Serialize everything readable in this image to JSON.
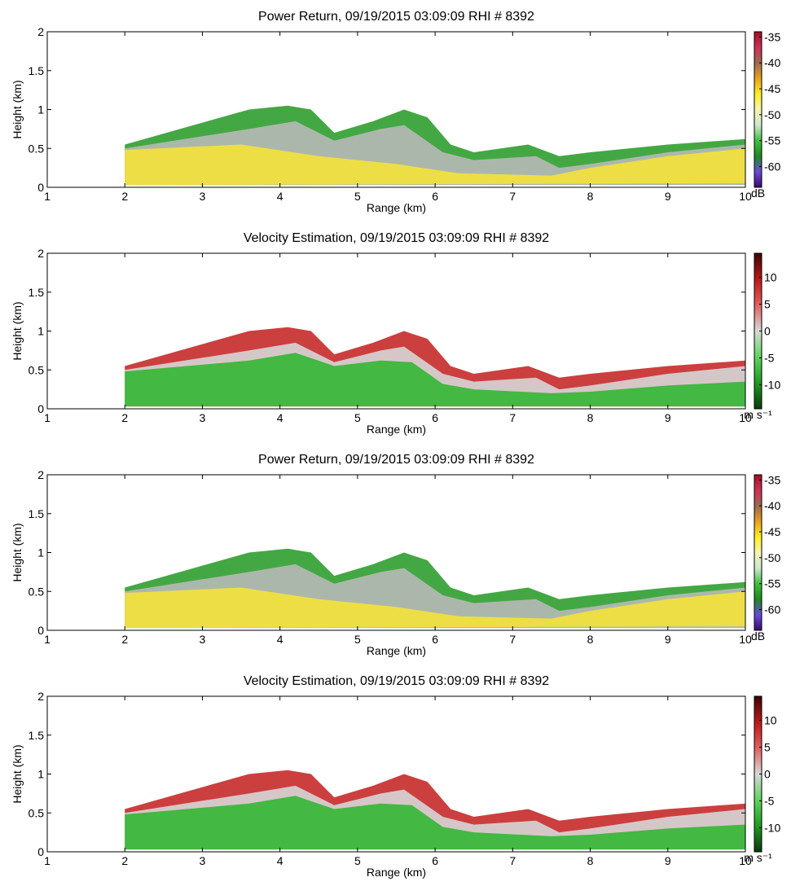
{
  "chart_data": [
    {
      "type": "heatmap",
      "title": "Power Return, 09/19/2015 03:09:09 RHI # 8392",
      "xlabel": "Range (km)",
      "ylabel": "Height (km)",
      "xlim": [
        1,
        10
      ],
      "xticks": [
        1,
        2,
        3,
        4,
        5,
        6,
        7,
        8,
        9,
        10
      ],
      "ylim": [
        0,
        2
      ],
      "yticks": [
        0,
        0.5,
        1,
        1.5,
        2
      ],
      "colorbar": {
        "label": "dB",
        "lim": [
          -64,
          -34
        ],
        "ticks": [
          -35,
          -40,
          -45,
          -50,
          -55,
          -60
        ],
        "colors": [
          "#3a0a6e",
          "#6a4bd8",
          "#1e8a1e",
          "#3fbf3f",
          "#cfe8cf",
          "#f5f5b0",
          "#ffee22",
          "#e8a020",
          "#9a6a50",
          "#d0305a",
          "#a01020"
        ]
      }
    },
    {
      "type": "heatmap",
      "title": "Velocity Estimation, 09/19/2015 03:09:09 RHI # 8392",
      "xlabel": "Range (km)",
      "ylabel": "Height (km)",
      "xlim": [
        1,
        10
      ],
      "xticks": [
        1,
        2,
        3,
        4,
        5,
        6,
        7,
        8,
        9,
        10
      ],
      "ylim": [
        0,
        2
      ],
      "yticks": [
        0,
        0.5,
        1,
        1.5,
        2
      ],
      "colorbar": {
        "label": "m s⁻¹",
        "lim": [
          -14.5,
          14.5
        ],
        "ticks": [
          10,
          5,
          0,
          -5,
          -10
        ],
        "colors": [
          "#0a3a0a",
          "#1f9a1f",
          "#5fd45f",
          "#d8d8d8",
          "#e06060",
          "#c01818",
          "#3a0505"
        ]
      }
    },
    {
      "type": "heatmap",
      "title": "Power Return, 09/19/2015 03:09:09 RHI # 8392",
      "xlabel": "Range (km)",
      "ylabel": "Height (km)",
      "xlim": [
        1,
        10
      ],
      "xticks": [
        1,
        2,
        3,
        4,
        5,
        6,
        7,
        8,
        9,
        10
      ],
      "ylim": [
        0,
        2
      ],
      "yticks": [
        0,
        0.5,
        1,
        1.5,
        2
      ],
      "colorbar": {
        "label": "dB",
        "lim": [
          -64,
          -34
        ],
        "ticks": [
          -35,
          -40,
          -45,
          -50,
          -55,
          -60
        ],
        "colors": [
          "#3a0a6e",
          "#6a4bd8",
          "#1e8a1e",
          "#3fbf3f",
          "#cfe8cf",
          "#f5f5b0",
          "#ffee22",
          "#e8a020",
          "#9a6a50",
          "#d0305a",
          "#a01020"
        ]
      }
    },
    {
      "type": "heatmap",
      "title": "Velocity Estimation, 09/19/2015 03:09:09 RHI # 8392",
      "xlabel": "Range (km)",
      "ylabel": "Height (km)",
      "xlim": [
        1,
        10
      ],
      "xticks": [
        1,
        2,
        3,
        4,
        5,
        6,
        7,
        8,
        9,
        10
      ],
      "ylim": [
        0,
        2
      ],
      "yticks": [
        0,
        0.5,
        1,
        1.5,
        2
      ],
      "colorbar": {
        "label": "m s⁻¹",
        "lim": [
          -14.5,
          14.5
        ],
        "ticks": [
          10,
          5,
          0,
          -5,
          -10
        ],
        "colors": [
          "#0a3a0a",
          "#1f9a1f",
          "#5fd45f",
          "#d8d8d8",
          "#e06060",
          "#c01818",
          "#3a0505"
        ]
      }
    }
  ]
}
